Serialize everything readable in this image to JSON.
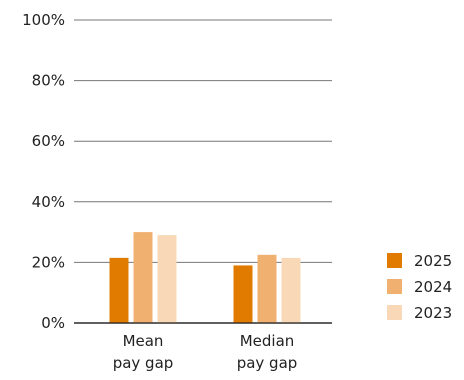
{
  "chart_data": {
    "type": "bar",
    "title": "",
    "xlabel": "",
    "ylabel": "",
    "categories": [
      [
        "Mean",
        "pay gap"
      ],
      [
        "Median",
        "pay gap"
      ]
    ],
    "series": [
      {
        "name": "2025",
        "color": "#E07B00",
        "values": [
          21.5,
          19
        ]
      },
      {
        "name": "2024",
        "color": "#F0B070",
        "values": [
          30,
          22.5
        ]
      },
      {
        "name": "2023",
        "color": "#F8D8B6",
        "values": [
          29,
          21.5
        ]
      }
    ],
    "ylim": [
      0,
      100
    ],
    "yticks": [
      0,
      20,
      40,
      60,
      80,
      100
    ],
    "ytick_labels": [
      "0%",
      "20%",
      "40%",
      "60%",
      "80%",
      "100%"
    ],
    "grid": true,
    "legend_position": "bottom-right",
    "gridline_color": "#777777"
  }
}
